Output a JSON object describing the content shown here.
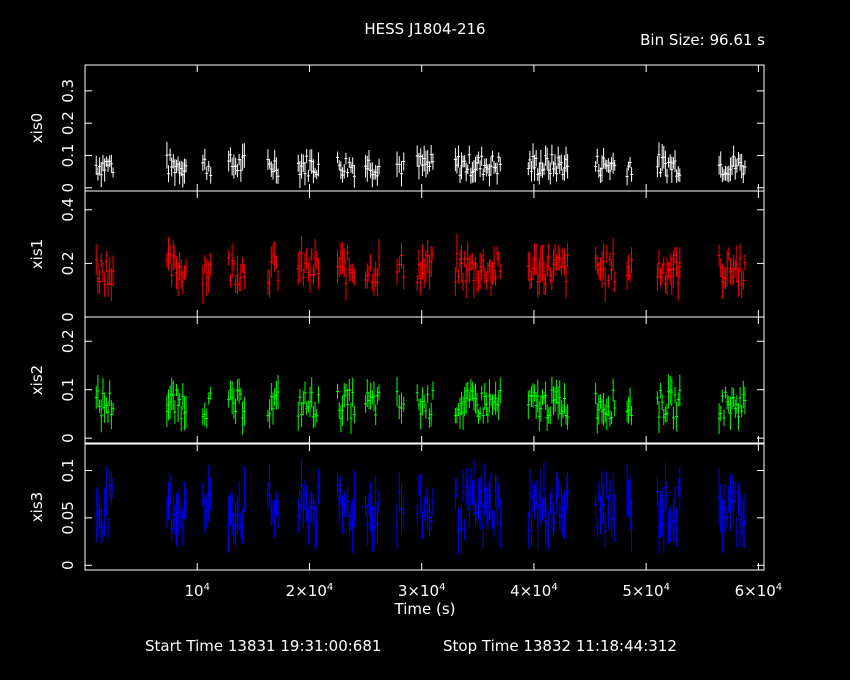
{
  "chart_data": {
    "type": "line",
    "title": "HESS J1804-216",
    "bin_size_label": "Bin Size:  96.61 s",
    "xlabel": "Time (s)",
    "xlim": [
      0,
      60500
    ],
    "x_ticks": [
      {
        "value": 10000,
        "mantissa": "10",
        "exp": "4"
      },
      {
        "value": 20000,
        "mantissa": "2×10",
        "exp": "4"
      },
      {
        "value": 30000,
        "mantissa": "3×10",
        "exp": "4"
      },
      {
        "value": 40000,
        "mantissa": "4×10",
        "exp": "4"
      },
      {
        "value": 50000,
        "mantissa": "5×10",
        "exp": "4"
      },
      {
        "value": 60000,
        "mantissa": "6×10",
        "exp": "4"
      }
    ],
    "start_time": "Start Time 13831 19:31:00:681",
    "stop_time": "Stop Time 13832 11:18:44:312",
    "segments": [
      [
        1000,
        2500
      ],
      [
        7300,
        9000
      ],
      [
        10500,
        11200
      ],
      [
        12800,
        14200
      ],
      [
        16300,
        17200
      ],
      [
        19000,
        20800
      ],
      [
        22500,
        24000
      ],
      [
        25000,
        26200
      ],
      [
        27800,
        28400
      ],
      [
        29600,
        31000
      ],
      [
        33000,
        37000
      ],
      [
        39500,
        43000
      ],
      [
        45500,
        47200
      ],
      [
        48300,
        48700
      ],
      [
        51000,
        53000
      ],
      [
        56500,
        58800
      ]
    ],
    "panels": [
      {
        "name": "xis0",
        "color": "#ffffff",
        "ylim": [
          -0.01,
          0.38
        ],
        "ticks": [
          0,
          0.1,
          0.2,
          0.3
        ],
        "tick_labels": [
          "0",
          "0.1",
          "0.2",
          "0.3"
        ],
        "base": 0.07,
        "spread": 0.035
      },
      {
        "name": "xis1",
        "color": "#ff0000",
        "ylim": [
          0,
          0.47
        ],
        "ticks": [
          0,
          0.2,
          0.4
        ],
        "tick_labels": [
          "0",
          "0.2",
          "0.4"
        ],
        "base": 0.18,
        "spread": 0.06
      },
      {
        "name": "xis2",
        "color": "#00ff00",
        "ylim": [
          -0.01,
          0.25
        ],
        "ticks": [
          0,
          0.1,
          0.2
        ],
        "tick_labels": [
          "0",
          "0.1",
          "0.2"
        ],
        "base": 0.07,
        "spread": 0.03
      },
      {
        "name": "xis3",
        "color": "#0000ff",
        "ylim": [
          -0.005,
          0.128
        ],
        "ticks": [
          0,
          0.05,
          0.1
        ],
        "tick_labels": [
          "0",
          "0.05",
          "0.1"
        ],
        "base": 0.06,
        "spread": 0.025
      }
    ]
  }
}
